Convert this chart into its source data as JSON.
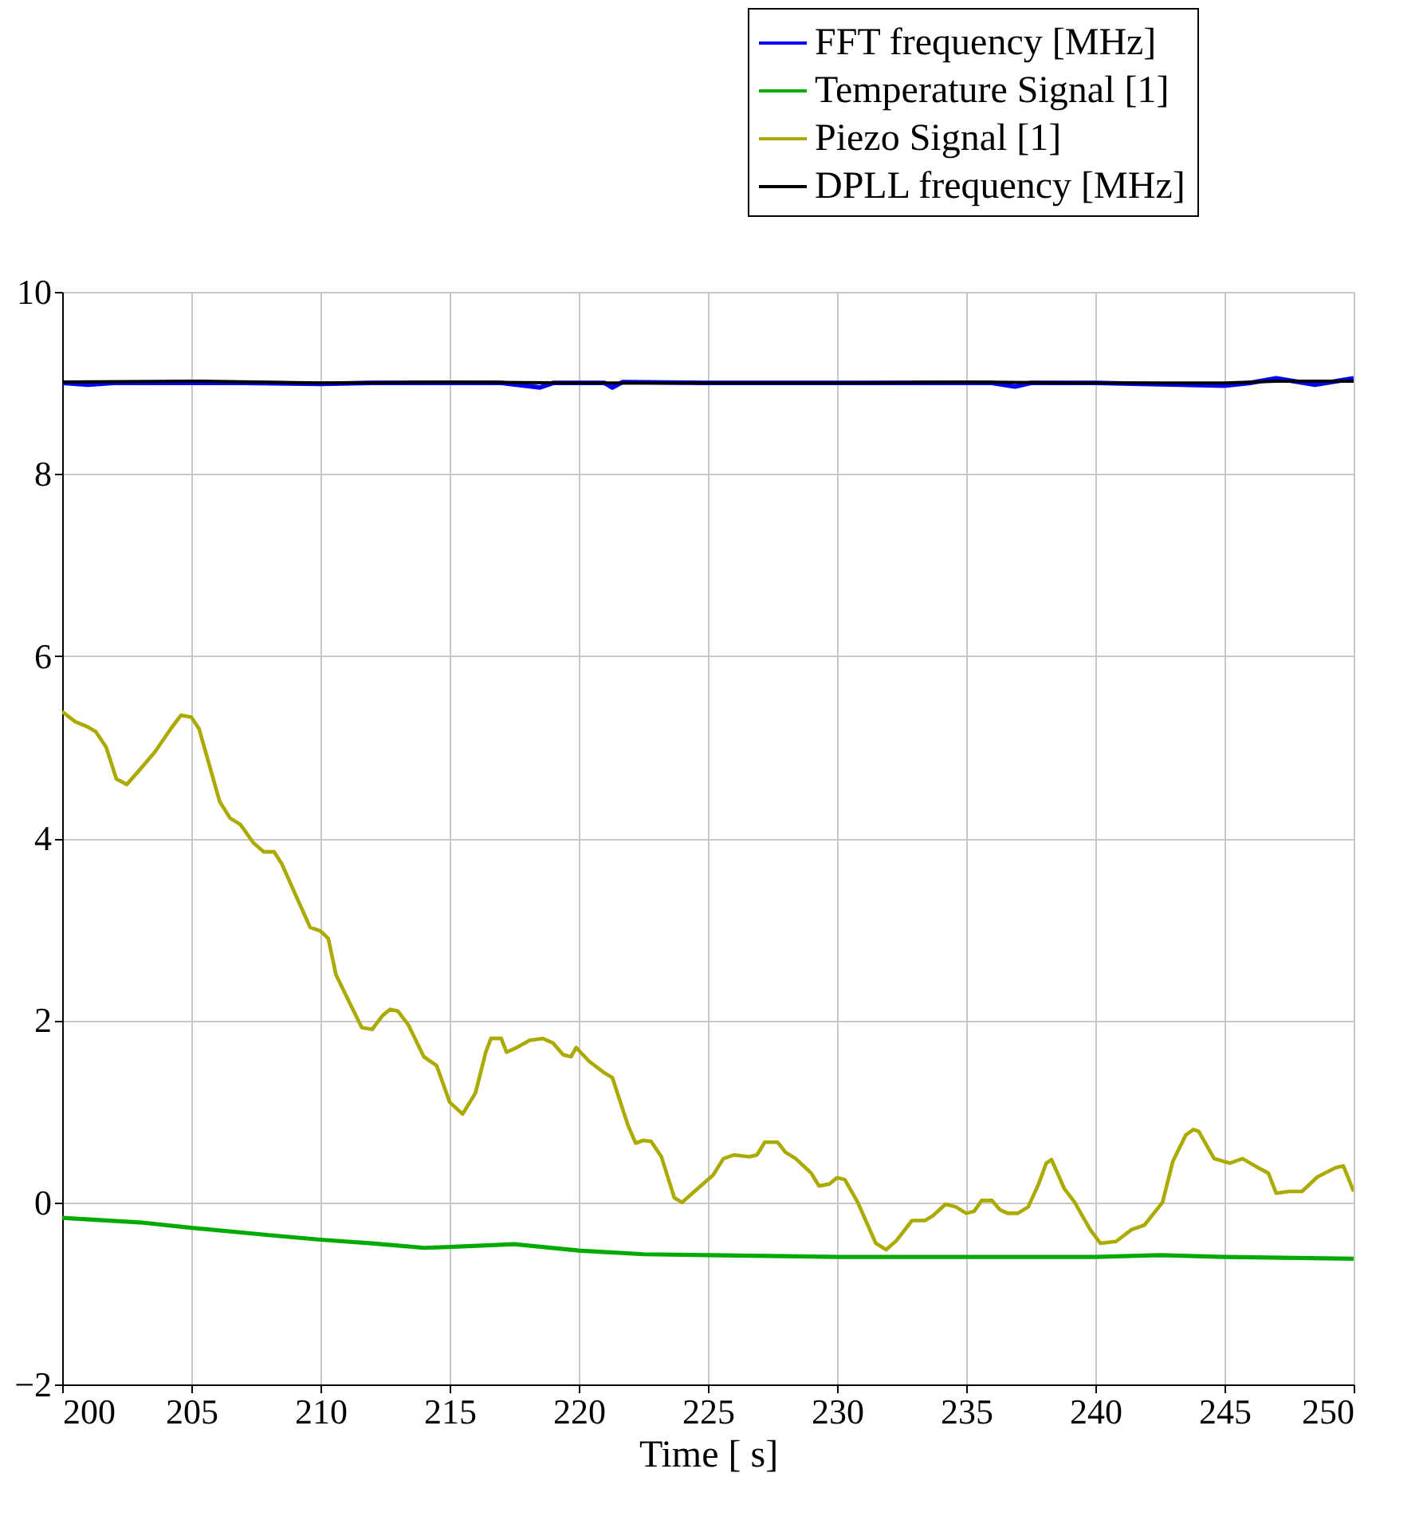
{
  "chart_data": {
    "type": "line",
    "xlabel": "Time [ s]",
    "xlim": [
      200,
      250
    ],
    "xticks": [
      200,
      205,
      210,
      215,
      220,
      225,
      230,
      235,
      240,
      245,
      250
    ],
    "ylim": [
      -2,
      10
    ],
    "yticks": [
      -2,
      0,
      2,
      4,
      6,
      8,
      10
    ],
    "grid": true,
    "legend": "top right",
    "line_style": "solid",
    "marker": "none",
    "series": [
      {
        "name": "FFT frequency [MHz]",
        "color": "#0000ff",
        "x": [
          200,
          201,
          202,
          203,
          205,
          207,
          210,
          212,
          215,
          217,
          218.5,
          219,
          221,
          221.3,
          221.7,
          225,
          230,
          236,
          236.9,
          237.5,
          240,
          245,
          246,
          247,
          248.5,
          250
        ],
        "values": [
          9.0,
          8.98,
          9.0,
          9.0,
          9.0,
          9.0,
          8.99,
          9.0,
          9.0,
          9.0,
          8.95,
          9.0,
          9.0,
          8.95,
          9.01,
          9.0,
          9.0,
          9.0,
          8.96,
          9.0,
          9.0,
          8.97,
          9.0,
          9.05,
          8.98,
          9.05
        ]
      },
      {
        "name": "Temperature Signal [1]",
        "color": "#00aa00",
        "x": [
          200,
          203,
          205,
          208,
          210,
          212,
          214,
          215,
          217.5,
          220,
          222.5,
          225,
          230,
          235,
          240,
          242.5,
          245,
          250
        ],
        "values": [
          -0.17,
          -0.22,
          -0.28,
          -0.36,
          -0.41,
          -0.45,
          -0.5,
          -0.49,
          -0.46,
          -0.53,
          -0.57,
          -0.58,
          -0.6,
          -0.6,
          -0.6,
          -0.58,
          -0.6,
          -0.62
        ]
      },
      {
        "name": "Piezo Signal [1]",
        "color": "#aaaa00",
        "x": [
          200,
          200.5,
          201,
          201.3,
          201.7,
          202.1,
          202.5,
          203,
          203.6,
          204.2,
          204.6,
          205,
          205.3,
          205.6,
          206.1,
          206.5,
          206.9,
          207.4,
          207.8,
          208.2,
          208.5,
          209,
          209.6,
          210,
          210.3,
          210.6,
          211.2,
          211.6,
          212,
          212.4,
          212.7,
          213,
          213.4,
          214,
          214.5,
          215,
          215.5,
          216,
          216.4,
          216.6,
          217,
          217.2,
          217.6,
          218.1,
          218.6,
          219,
          219.4,
          219.7,
          219.9,
          220.4,
          221,
          221.3,
          221.9,
          222.2,
          222.5,
          222.8,
          223.2,
          223.7,
          224,
          224.6,
          225.2,
          225.6,
          226,
          226.6,
          226.9,
          227.2,
          227.7,
          228,
          228.4,
          229,
          229.3,
          229.7,
          230,
          230.3,
          230.8,
          231.5,
          231.9,
          232.3,
          232.9,
          233.4,
          233.7,
          234.2,
          234.6,
          235,
          235.3,
          235.6,
          236,
          236.3,
          236.6,
          237,
          237.4,
          237.8,
          238.1,
          238.3,
          238.8,
          239.2,
          239.8,
          240.2,
          240.8,
          241.4,
          241.9,
          242.6,
          243,
          243.5,
          243.8,
          244,
          244.6,
          245.2,
          245.7,
          246.3,
          246.7,
          247,
          247.5,
          248,
          248.6,
          249.3,
          249.6,
          250
        ],
        "values": [
          5.39,
          5.28,
          5.22,
          5.17,
          5.0,
          4.65,
          4.59,
          4.75,
          4.95,
          5.2,
          5.35,
          5.33,
          5.2,
          4.9,
          4.4,
          4.22,
          4.15,
          3.95,
          3.85,
          3.85,
          3.72,
          3.4,
          3.02,
          2.98,
          2.9,
          2.5,
          2.15,
          1.92,
          1.9,
          2.05,
          2.12,
          2.1,
          1.95,
          1.6,
          1.5,
          1.1,
          0.97,
          1.2,
          1.65,
          1.8,
          1.8,
          1.65,
          1.7,
          1.78,
          1.8,
          1.75,
          1.62,
          1.6,
          1.7,
          1.55,
          1.42,
          1.37,
          0.85,
          0.65,
          0.68,
          0.67,
          0.5,
          0.05,
          0.0,
          0.15,
          0.3,
          0.48,
          0.52,
          0.5,
          0.52,
          0.66,
          0.66,
          0.55,
          0.48,
          0.32,
          0.18,
          0.2,
          0.27,
          0.25,
          0.0,
          -0.45,
          -0.52,
          -0.42,
          -0.2,
          -0.2,
          -0.15,
          -0.02,
          -0.05,
          -0.12,
          -0.1,
          0.02,
          0.02,
          -0.08,
          -0.12,
          -0.12,
          -0.05,
          0.2,
          0.43,
          0.47,
          0.15,
          0.0,
          -0.3,
          -0.45,
          -0.43,
          -0.3,
          -0.25,
          0.0,
          0.45,
          0.74,
          0.8,
          0.78,
          0.48,
          0.43,
          0.48,
          0.38,
          0.32,
          0.1,
          0.12,
          0.12,
          0.28,
          0.38,
          0.4,
          0.12
        ]
      },
      {
        "name": "DPLL frequency [MHz]",
        "color": "#000000",
        "x": [
          200,
          205,
          210,
          215,
          220,
          225,
          230,
          235,
          240,
          245,
          247,
          250
        ],
        "values": [
          9.01,
          9.02,
          9.0,
          9.01,
          9.0,
          9.0,
          9.0,
          9.01,
          9.0,
          9.0,
          9.02,
          9.02
        ]
      }
    ]
  }
}
